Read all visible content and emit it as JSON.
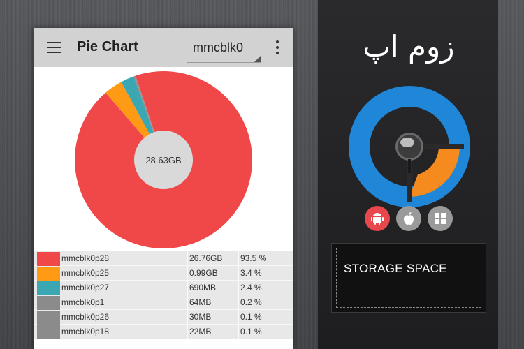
{
  "app": {
    "title": "Pie Chart",
    "selected_device": "mmcblk0"
  },
  "chart_data": {
    "type": "pie",
    "center_label": "28.63GB",
    "slices": [
      {
        "name": "mmcblk0p28",
        "size": "26.76GB",
        "percent": 93.5,
        "color": "#f04848"
      },
      {
        "name": "mmcblk0p25",
        "size": "0.99GB",
        "percent": 3.4,
        "color": "#ff9a14"
      },
      {
        "name": "mmcblk0p27",
        "size": "690MB",
        "percent": 2.4,
        "color": "#3aa7b3"
      },
      {
        "name": "mmcblk0p1",
        "size": "64MB",
        "percent": 0.2,
        "color": "#8b8b8b"
      },
      {
        "name": "mmcblk0p26",
        "size": "30MB",
        "percent": 0.1,
        "color": "#8b8b8b"
      },
      {
        "name": "mmcblk0p18",
        "size": "22MB",
        "percent": 0.1,
        "color": "#8b8b8b"
      }
    ]
  },
  "table": {
    "rows": [
      {
        "name": "mmcblk0p28",
        "size": "26.76GB",
        "pct": "93.5 %",
        "color": "#f04848"
      },
      {
        "name": "mmcblk0p25",
        "size": "0.99GB",
        "pct": "3.4 %",
        "color": "#ff9a14"
      },
      {
        "name": "mmcblk0p27",
        "size": "690MB",
        "pct": "2.4 %",
        "color": "#3aa7b3"
      },
      {
        "name": "mmcblk0p1",
        "size": "64MB",
        "pct": "0.2 %",
        "color": "#8b8b8b"
      },
      {
        "name": "mmcblk0p26",
        "size": "30MB",
        "pct": "0.1 %",
        "color": "#8b8b8b"
      },
      {
        "name": "mmcblk0p18",
        "size": "22MB",
        "pct": "0.1 %",
        "color": "#8b8b8b"
      }
    ]
  },
  "panel": {
    "brand": "زوم اپ",
    "caption": "STORAGE SPACE",
    "platforms": [
      {
        "icon": "android-icon",
        "color": "#e8474c"
      },
      {
        "icon": "apple-icon",
        "color": "#9a9a9a"
      },
      {
        "icon": "windows-icon",
        "color": "#9a9a9a"
      }
    ],
    "logo_colors": {
      "blue": "#1f86d8",
      "orange": "#f58a1f",
      "knob": "#5a5a5a"
    }
  }
}
